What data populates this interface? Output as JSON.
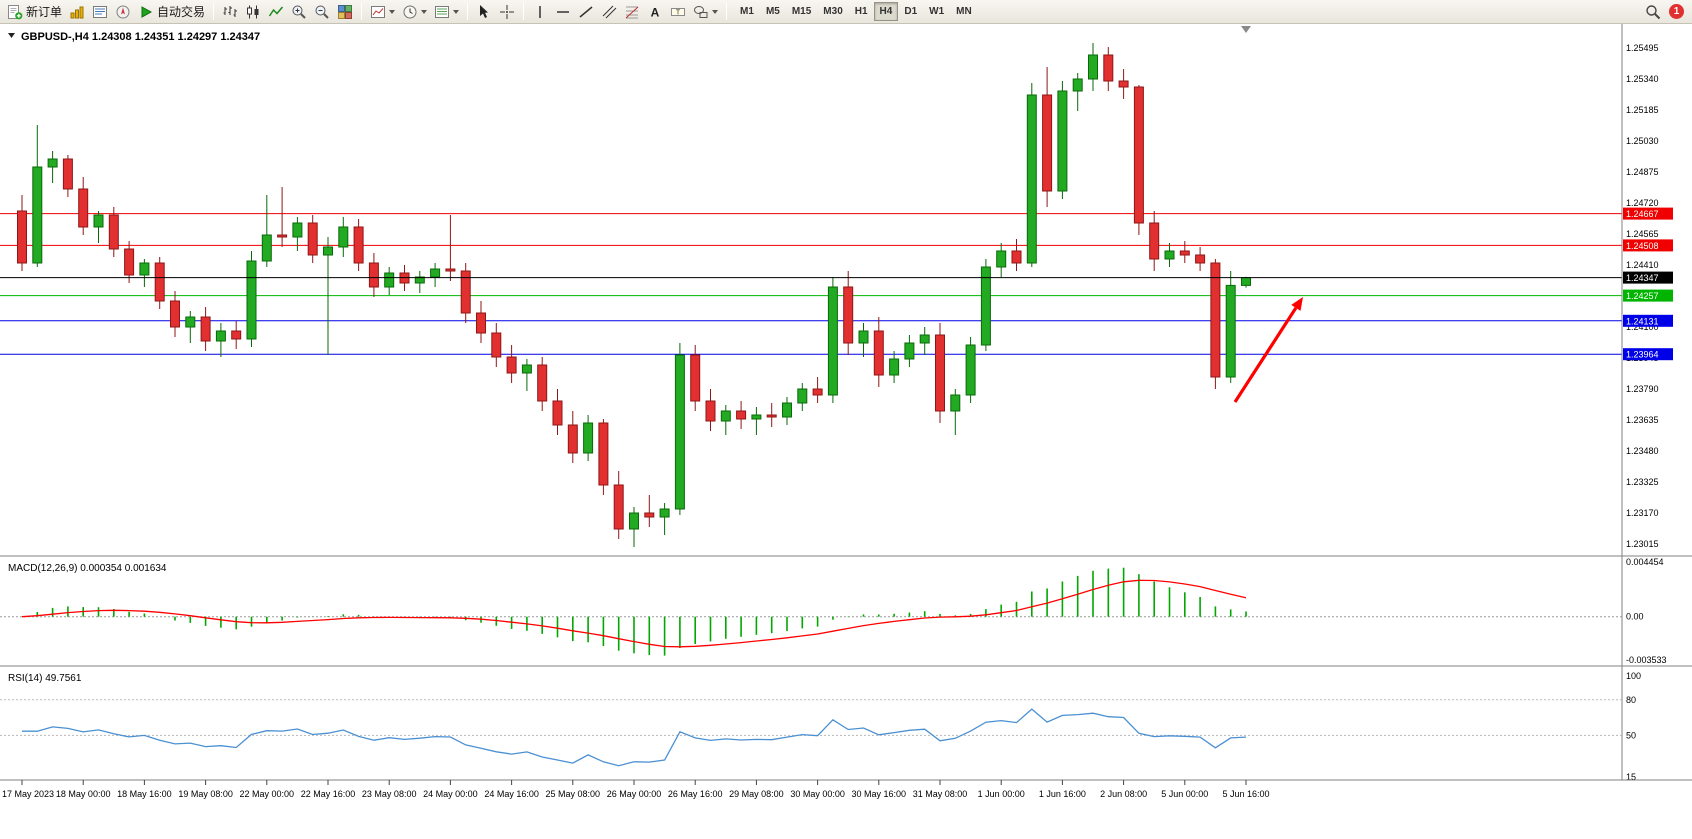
{
  "toolbar": {
    "new_order_label": "新订单",
    "auto_trading_label": "自动交易",
    "timeframes": [
      "M1",
      "M5",
      "M15",
      "M30",
      "H1",
      "H4",
      "D1",
      "W1",
      "MN"
    ],
    "active_timeframe": "H4",
    "notification_count": "1",
    "icon_groups": [
      [
        "market-watch-icon",
        "data-window-icon",
        "navigator-icon"
      ],
      [
        "bar-chart-icon",
        "candlestick-chart-icon",
        "line-chart-icon"
      ],
      [
        "zoom-in-icon",
        "zoom-out-icon"
      ],
      [
        "tile-windows-icon"
      ],
      [
        "new-chart-icon",
        "periods-icon",
        "templates-icon"
      ],
      [
        "cursor-icon",
        "crosshair-icon"
      ],
      [
        "vertical-line-icon",
        "horizontal-line-icon",
        "trendline-icon",
        "channel-icon",
        "fibonacci-icon",
        "text-icon",
        "label-icon",
        "shapes-icon"
      ]
    ]
  },
  "chart_data": {
    "type": "candlestick",
    "symbol": "GBPUSD-",
    "period": "H4",
    "title": "GBPUSD-,H4",
    "ohlc_text": "1.24308 1.24351 1.24297 1.24347",
    "open": "1.24308",
    "high": "1.24351",
    "low": "1.24297",
    "close": "1.24347",
    "price_axis_labels": [
      "1.25495",
      "1.25340",
      "1.25185",
      "1.25030",
      "1.24875",
      "1.24720",
      "1.24565",
      "1.24410",
      "1.24255",
      "1.24100",
      "1.23945",
      "1.23790",
      "1.23635",
      "1.23480",
      "1.23325",
      "1.23170",
      "1.23015"
    ],
    "time_labels": [
      "17 May 2023",
      "18 May 00:00",
      "18 May 16:00",
      "19 May 08:00",
      "22 May 00:00",
      "22 May 16:00",
      "23 May 08:00",
      "24 May 00:00",
      "24 May 16:00",
      "25 May 08:00",
      "26 May 00:00",
      "26 May 16:00",
      "29 May 08:00",
      "30 May 00:00",
      "30 May 16:00",
      "31 May 08:00",
      "1 Jun 00:00",
      "1 Jun 16:00",
      "2 Jun 08:00",
      "5 Jun 00:00",
      "5 Jun 16:00"
    ],
    "bars_per_time_label": 4,
    "candles": [
      [
        1.2468,
        1.2476,
        1.2438,
        1.2442
      ],
      [
        1.2442,
        1.2511,
        1.244,
        1.249
      ],
      [
        1.249,
        1.2498,
        1.2482,
        1.2494
      ],
      [
        1.2494,
        1.2496,
        1.2475,
        1.2479
      ],
      [
        1.2479,
        1.2485,
        1.2456,
        1.246
      ],
      [
        1.246,
        1.2468,
        1.2452,
        1.2466
      ],
      [
        1.2466,
        1.247,
        1.2445,
        1.2449
      ],
      [
        1.2449,
        1.2453,
        1.2432,
        1.2436
      ],
      [
        1.2436,
        1.2444,
        1.243,
        1.2442
      ],
      [
        1.2442,
        1.2445,
        1.2419,
        1.2423
      ],
      [
        1.2423,
        1.2428,
        1.2405,
        1.241
      ],
      [
        1.241,
        1.2418,
        1.2402,
        1.2415
      ],
      [
        1.2415,
        1.242,
        1.2398,
        1.2403
      ],
      [
        1.2403,
        1.2412,
        1.2395,
        1.2408
      ],
      [
        1.2408,
        1.2413,
        1.2399,
        1.2404
      ],
      [
        1.2404,
        1.2448,
        1.24,
        1.2443
      ],
      [
        1.2443,
        1.2476,
        1.244,
        1.2456
      ],
      [
        1.2456,
        1.248,
        1.245,
        1.2455
      ],
      [
        1.2455,
        1.2465,
        1.2448,
        1.2462
      ],
      [
        1.2462,
        1.2466,
        1.2442,
        1.2446
      ],
      [
        1.2446,
        1.2455,
        1.2396,
        1.245
      ],
      [
        1.245,
        1.2465,
        1.2445,
        1.246
      ],
      [
        1.246,
        1.2464,
        1.2438,
        1.2442
      ],
      [
        1.2442,
        1.2447,
        1.2425,
        1.243
      ],
      [
        1.243,
        1.244,
        1.2426,
        1.2437
      ],
      [
        1.2437,
        1.2441,
        1.2428,
        1.2432
      ],
      [
        1.2432,
        1.2438,
        1.2427,
        1.2435
      ],
      [
        1.2435,
        1.2442,
        1.243,
        1.2439
      ],
      [
        1.2439,
        1.2466,
        1.2433,
        1.2438
      ],
      [
        1.2438,
        1.2442,
        1.2412,
        1.2417
      ],
      [
        1.2417,
        1.2423,
        1.2402,
        1.2407
      ],
      [
        1.2407,
        1.2412,
        1.239,
        1.2395
      ],
      [
        1.2395,
        1.2401,
        1.2382,
        1.2387
      ],
      [
        1.2387,
        1.2394,
        1.2378,
        1.2391
      ],
      [
        1.2391,
        1.2395,
        1.2368,
        1.2373
      ],
      [
        1.2373,
        1.2379,
        1.2356,
        1.2361
      ],
      [
        1.2361,
        1.2368,
        1.2342,
        1.2347
      ],
      [
        1.2347,
        1.2366,
        1.2343,
        1.2362
      ],
      [
        1.2362,
        1.2364,
        1.2326,
        1.2331
      ],
      [
        1.2331,
        1.2338,
        1.2304,
        1.2309
      ],
      [
        1.2309,
        1.232,
        1.23,
        1.2317
      ],
      [
        1.2317,
        1.2326,
        1.231,
        1.2315
      ],
      [
        1.2315,
        1.2322,
        1.2306,
        1.2319
      ],
      [
        1.2319,
        1.2402,
        1.2316,
        1.2396
      ],
      [
        1.2396,
        1.2401,
        1.2368,
        1.2373
      ],
      [
        1.2373,
        1.2379,
        1.2358,
        1.2363
      ],
      [
        1.2363,
        1.2371,
        1.2356,
        1.2368
      ],
      [
        1.2368,
        1.2373,
        1.2359,
        1.2364
      ],
      [
        1.2364,
        1.237,
        1.2356,
        1.2366
      ],
      [
        1.2366,
        1.2372,
        1.236,
        1.2365
      ],
      [
        1.2365,
        1.2375,
        1.2361,
        1.2372
      ],
      [
        1.2372,
        1.2382,
        1.2368,
        1.2379
      ],
      [
        1.2379,
        1.2385,
        1.2372,
        1.2376
      ],
      [
        1.2376,
        1.2435,
        1.2372,
        1.243
      ],
      [
        1.243,
        1.2438,
        1.2396,
        1.2402
      ],
      [
        1.2402,
        1.2412,
        1.2395,
        1.2408
      ],
      [
        1.2408,
        1.2415,
        1.238,
        1.2386
      ],
      [
        1.2386,
        1.2398,
        1.2382,
        1.2394
      ],
      [
        1.2394,
        1.2406,
        1.239,
        1.2402
      ],
      [
        1.2402,
        1.241,
        1.2396,
        1.2406
      ],
      [
        1.2406,
        1.2412,
        1.2362,
        1.2368
      ],
      [
        1.2368,
        1.2379,
        1.2356,
        1.2376
      ],
      [
        1.2376,
        1.2405,
        1.2372,
        1.2401
      ],
      [
        1.2401,
        1.2444,
        1.2398,
        1.244
      ],
      [
        1.244,
        1.2452,
        1.2435,
        1.2448
      ],
      [
        1.2448,
        1.2454,
        1.2438,
        1.2442
      ],
      [
        1.2442,
        1.2532,
        1.244,
        1.2526
      ],
      [
        1.2526,
        1.254,
        1.247,
        1.2478
      ],
      [
        1.2478,
        1.2533,
        1.2474,
        1.2528
      ],
      [
        1.2528,
        1.2537,
        1.2518,
        1.2534
      ],
      [
        1.2534,
        1.2552,
        1.2528,
        1.2546
      ],
      [
        1.2546,
        1.255,
        1.2528,
        1.2533
      ],
      [
        1.2533,
        1.2539,
        1.2524,
        1.253
      ],
      [
        1.253,
        1.2531,
        1.2456,
        1.2462
      ],
      [
        1.2462,
        1.2468,
        1.2438,
        1.2444
      ],
      [
        1.2444,
        1.2452,
        1.244,
        1.2448
      ],
      [
        1.2448,
        1.2453,
        1.2442,
        1.2446
      ],
      [
        1.2446,
        1.245,
        1.2438,
        1.2442
      ],
      [
        1.2442,
        1.2444,
        1.2379,
        1.2385
      ],
      [
        1.2385,
        1.2438,
        1.2382,
        1.24308
      ],
      [
        1.24308,
        1.24351,
        1.24297,
        1.24347
      ]
    ],
    "levels": [
      {
        "price": 1.24667,
        "color": "#f00000",
        "type": "resistance-line"
      },
      {
        "price": 1.24508,
        "color": "#f00000",
        "type": "resistance-line"
      },
      {
        "price": 1.24347,
        "color": "#000000",
        "type": "current-price-line"
      },
      {
        "price": 1.24257,
        "color": "#00b400",
        "type": "support-line"
      },
      {
        "price": 1.24131,
        "color": "#0000e8",
        "type": "support-line"
      },
      {
        "price": 1.23964,
        "color": "#0000e8",
        "type": "support-line"
      }
    ],
    "macd": {
      "label": "MACD(12,26,9)",
      "main_value": "0.000354",
      "signal_value": "0.001634",
      "fast": 12,
      "slow": 26,
      "signal": 9,
      "axis_labels": [
        "0.004454",
        "0.00",
        "-0.003533"
      ],
      "histogram_color": "#00a800",
      "signal_color": "#ff0000"
    },
    "rsi": {
      "label": "RSI(14)",
      "value": "49.7561",
      "period": 14,
      "axis_labels": [
        "100",
        "80",
        "50",
        "15"
      ],
      "level_lines": [
        80,
        50
      ],
      "line_color": "#4a90d2"
    },
    "arrow": {
      "from": [
        1235,
        402
      ],
      "to": [
        1303,
        297
      ],
      "color": "#ff0000"
    },
    "colors": {
      "bg": "#ffffff",
      "up": "#22aa22",
      "up_dark": "#0a6a0a",
      "down": "#e23030",
      "down_dark": "#8f1616",
      "axis_line": "#808080",
      "text": "#000000"
    }
  }
}
